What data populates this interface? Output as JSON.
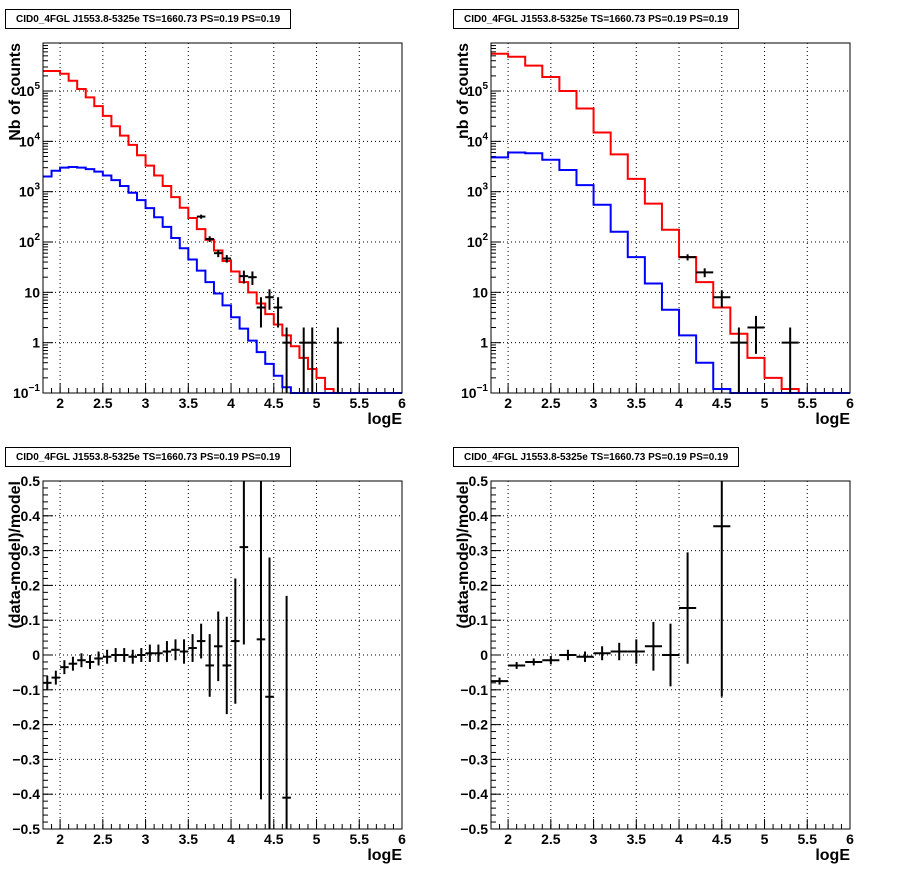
{
  "chart_data": [
    {
      "type": "line",
      "title": "CID0_4FGL J1553.8-5325e TS=1660.73 PS=0.19 PS=0.19",
      "xlabel": "logE",
      "ylabel": "Nb of counts",
      "xlim": [
        1.8,
        6
      ],
      "ylim": [
        0.1,
        900000
      ],
      "log_y": true,
      "x_ticks": [
        "2",
        "2.5",
        "3",
        "3.5",
        "4",
        "4.5",
        "5",
        "5.5",
        "6"
      ],
      "y_ticks": [
        "10^-1",
        "1",
        "10",
        "10^2",
        "10^3",
        "10^4",
        "10^5"
      ],
      "grid": true,
      "bin_edges": [
        1.8,
        1.9,
        2.0,
        2.1,
        2.2,
        2.3,
        2.4,
        2.5,
        2.6,
        2.7,
        2.8,
        2.9,
        3.0,
        3.1,
        3.2,
        3.3,
        3.4,
        3.5,
        3.6,
        3.7,
        3.8,
        3.9,
        4.0,
        4.1,
        4.2,
        4.3,
        4.4,
        4.5,
        4.6,
        4.7,
        4.8,
        4.9,
        5.0,
        5.1,
        5.2,
        5.3,
        5.4,
        5.5,
        5.6,
        5.7,
        5.8,
        5.9,
        6.0
      ],
      "series": [
        {
          "color": "#ff0000",
          "style": "step",
          "values": [
            250000,
            250000,
            220000,
            160000,
            110000,
            75000,
            50000,
            32000,
            20000,
            13000,
            8500,
            5300,
            3300,
            2100,
            1300,
            780,
            480,
            300,
            180,
            110,
            68,
            42,
            26,
            16,
            10,
            6,
            3.7,
            2.3,
            1.4,
            0.85,
            0.5,
            0.3,
            0.2,
            0.12,
            0.1,
            0.1,
            0.1,
            0.1,
            0.1,
            0.1,
            0.1,
            0.1
          ]
        },
        {
          "color": "#0000ff",
          "style": "step",
          "values": [
            2000,
            2600,
            3000,
            3100,
            3000,
            2800,
            2500,
            2100,
            1700,
            1300,
            950,
            680,
            470,
            310,
            200,
            120,
            75,
            45,
            27,
            16,
            9.5,
            5.5,
            3.2,
            1.9,
            1.1,
            0.65,
            0.38,
            0.22,
            0.13,
            0.1,
            0.1,
            0.1,
            0.1,
            0.1,
            0.1,
            0.1,
            0.1,
            0.1,
            0.1,
            0.1,
            0.1,
            0.1
          ]
        },
        {
          "color": "#000000",
          "style": "points",
          "points": [
            [
              3.65,
              320,
              0.05,
              30
            ],
            [
              3.75,
              115,
              0.05,
              15
            ],
            [
              3.85,
              60,
              0.05,
              10
            ],
            [
              3.95,
              47,
              0.05,
              8
            ],
            [
              4.15,
              21,
              0.05,
              6
            ],
            [
              4.25,
              20,
              0.05,
              6
            ],
            [
              4.35,
              5,
              0.05,
              3
            ],
            [
              4.45,
              8,
              0.05,
              3.5
            ],
            [
              4.55,
              5,
              0.05,
              3
            ],
            [
              4.65,
              1,
              0.05,
              1
            ],
            [
              4.85,
              1,
              0.05,
              1
            ],
            [
              4.95,
              1,
              0.05,
              1
            ],
            [
              5.25,
              1,
              0.05,
              1
            ]
          ]
        }
      ]
    },
    {
      "type": "line",
      "title": "CID0_4FGL J1553.8-5325e TS=1660.73 PS=0.19 PS=0.19",
      "xlabel": "logE",
      "ylabel": "nb of counts",
      "xlim": [
        1.8,
        6
      ],
      "ylim": [
        0.1,
        900000
      ],
      "log_y": true,
      "x_ticks": [
        "2",
        "2.5",
        "3",
        "3.5",
        "4",
        "4.5",
        "5",
        "5.5",
        "6"
      ],
      "y_ticks": [
        "10^-1",
        "1",
        "10",
        "10^2",
        "10^3",
        "10^4",
        "10^5"
      ],
      "grid": true,
      "bin_edges": [
        1.8,
        2.0,
        2.2,
        2.4,
        2.6,
        2.8,
        3.0,
        3.2,
        3.4,
        3.6,
        3.8,
        4.0,
        4.2,
        4.4,
        4.6,
        4.8,
        5.0,
        5.2,
        5.4,
        5.6,
        5.8,
        6.0
      ],
      "series": [
        {
          "color": "#ff0000",
          "style": "step",
          "values": [
            550000,
            480000,
            320000,
            190000,
            100000,
            45000,
            15000,
            5500,
            1800,
            580,
            175,
            50,
            16,
            5,
            1.5,
            0.5,
            0.2,
            0.12,
            0.1,
            0.1,
            0.1
          ]
        },
        {
          "color": "#0000ff",
          "style": "step",
          "values": [
            4800,
            6000,
            5800,
            4300,
            2700,
            1350,
            550,
            160,
            50,
            15,
            4.5,
            1.4,
            0.4,
            0.12,
            0.1,
            0.1,
            0.1,
            0.1,
            0.1,
            0.1,
            0.1
          ]
        },
        {
          "color": "#000000",
          "style": "points",
          "points": [
            [
              4.1,
              50,
              0.1,
              7
            ],
            [
              4.3,
              25,
              0.1,
              5
            ],
            [
              4.5,
              8,
              0.1,
              3
            ],
            [
              4.7,
              1,
              0.1,
              1
            ],
            [
              4.9,
              2,
              0.1,
              1.4
            ],
            [
              5.3,
              1,
              0.1,
              1
            ]
          ]
        }
      ]
    },
    {
      "type": "scatter",
      "title": "CID0_4FGL J1553.8-5325e TS=1660.73 PS=0.19 PS=0.19",
      "xlabel": "logE",
      "ylabel": "(data-model)/model",
      "xlim": [
        1.8,
        6
      ],
      "ylim": [
        -0.5,
        0.5
      ],
      "x_ticks": [
        "2",
        "2.5",
        "3",
        "3.5",
        "4",
        "4.5",
        "5",
        "5.5",
        "6"
      ],
      "y_ticks": [
        "−0.5",
        "−0.4",
        "−0.3",
        "−0.2",
        "−0.1",
        "0",
        "0.1",
        "0.2",
        "0.3",
        "0.4",
        "0.5"
      ],
      "grid": true,
      "series": [
        {
          "color": "#000000",
          "points": [
            [
              1.85,
              -0.08,
              0.05,
              0.02
            ],
            [
              1.95,
              -0.065,
              0.05,
              0.02
            ],
            [
              2.05,
              -0.035,
              0.05,
              0.02
            ],
            [
              2.15,
              -0.025,
              0.05,
              0.02
            ],
            [
              2.25,
              -0.015,
              0.05,
              0.02
            ],
            [
              2.35,
              -0.02,
              0.05,
              0.02
            ],
            [
              2.45,
              -0.01,
              0.05,
              0.02
            ],
            [
              2.55,
              -0.005,
              0.05,
              0.02
            ],
            [
              2.65,
              0.0,
              0.05,
              0.02
            ],
            [
              2.75,
              0.0,
              0.05,
              0.02
            ],
            [
              2.85,
              -0.005,
              0.05,
              0.02
            ],
            [
              2.95,
              0.0,
              0.05,
              0.02
            ],
            [
              3.05,
              0.005,
              0.05,
              0.025
            ],
            [
              3.15,
              0.005,
              0.05,
              0.025
            ],
            [
              3.25,
              0.01,
              0.05,
              0.03
            ],
            [
              3.35,
              0.015,
              0.05,
              0.03
            ],
            [
              3.45,
              0.01,
              0.05,
              0.035
            ],
            [
              3.55,
              0.02,
              0.05,
              0.04
            ],
            [
              3.65,
              0.04,
              0.05,
              0.05
            ],
            [
              3.75,
              -0.03,
              0.05,
              0.09
            ],
            [
              3.85,
              0.025,
              0.05,
              0.1
            ],
            [
              3.95,
              -0.03,
              0.05,
              0.14
            ],
            [
              4.05,
              0.04,
              0.05,
              0.18
            ],
            [
              4.15,
              0.31,
              0.05,
              0.28
            ],
            [
              4.35,
              0.045,
              0.05,
              0.46
            ],
            [
              4.45,
              -0.12,
              0.05,
              0.4
            ],
            [
              4.65,
              -0.41,
              0.05,
              0.58
            ]
          ]
        }
      ]
    },
    {
      "type": "scatter",
      "title": "CID0_4FGL J1553.8-5325e TS=1660.73 PS=0.19 PS=0.19",
      "xlabel": "logE",
      "ylabel": "(data-model)/model",
      "xlim": [
        1.8,
        6
      ],
      "ylim": [
        -0.5,
        0.5
      ],
      "x_ticks": [
        "2",
        "2.5",
        "3",
        "3.5",
        "4",
        "4.5",
        "5",
        "5.5",
        "6"
      ],
      "y_ticks": [
        "−0.5",
        "−0.4",
        "−0.3",
        "−0.2",
        "−0.1",
        "0",
        "0.1",
        "0.2",
        "0.3",
        "0.4",
        "0.5"
      ],
      "grid": true,
      "series": [
        {
          "color": "#000000",
          "points": [
            [
              1.9,
              -0.075,
              0.1,
              0.01
            ],
            [
              2.1,
              -0.03,
              0.1,
              0.01
            ],
            [
              2.3,
              -0.02,
              0.1,
              0.01
            ],
            [
              2.5,
              -0.015,
              0.1,
              0.012
            ],
            [
              2.7,
              0.0,
              0.1,
              0.015
            ],
            [
              2.9,
              -0.005,
              0.1,
              0.015
            ],
            [
              3.1,
              0.005,
              0.1,
              0.02
            ],
            [
              3.3,
              0.01,
              0.1,
              0.025
            ],
            [
              3.5,
              0.01,
              0.1,
              0.035
            ],
            [
              3.7,
              0.025,
              0.1,
              0.07
            ],
            [
              3.9,
              0.0,
              0.1,
              0.09
            ],
            [
              4.1,
              0.135,
              0.1,
              0.16
            ],
            [
              4.5,
              0.37,
              0.1,
              0.49
            ]
          ]
        }
      ]
    }
  ]
}
